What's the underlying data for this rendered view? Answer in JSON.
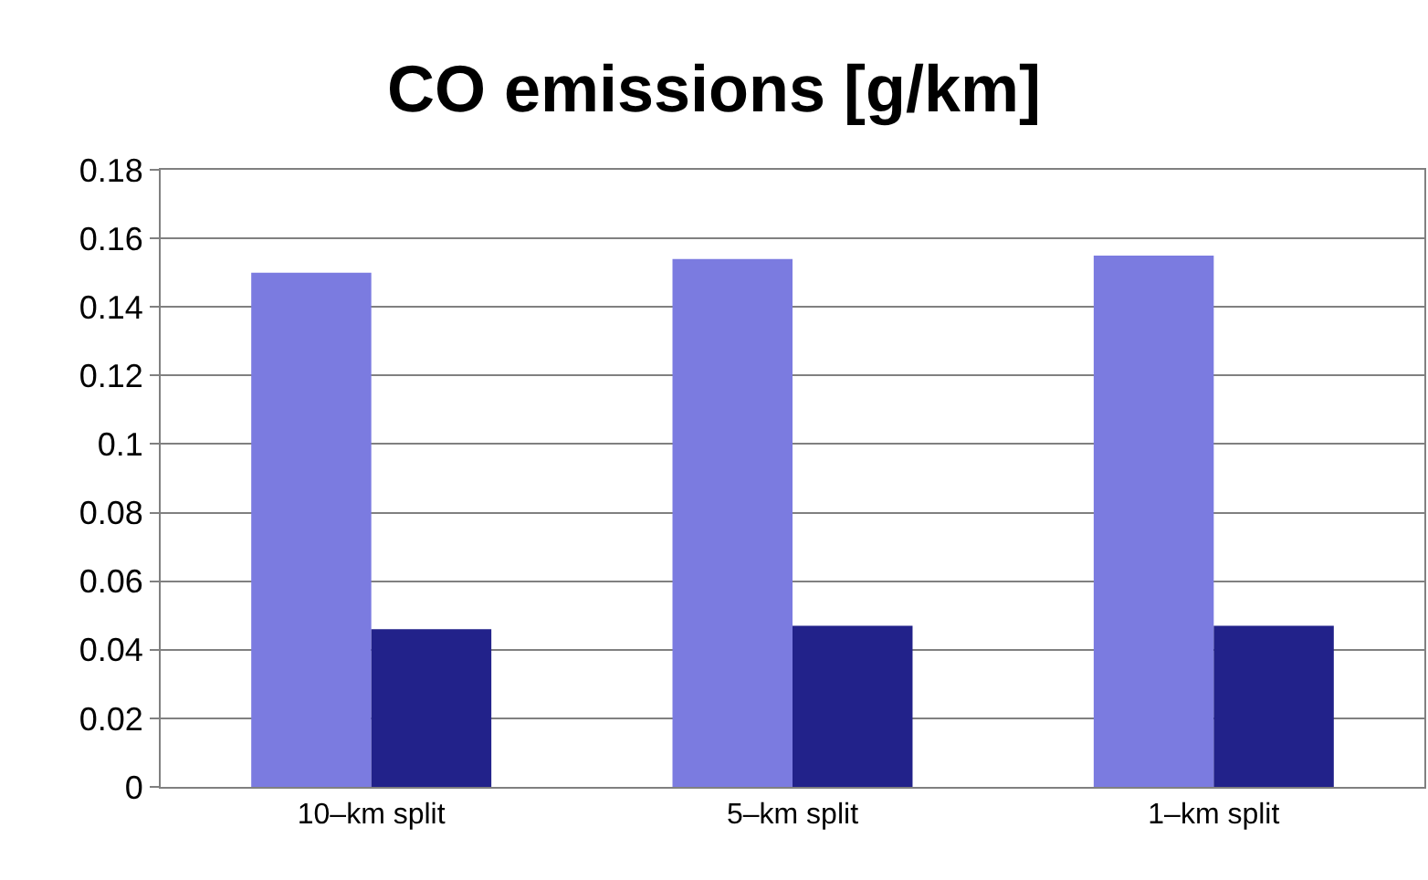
{
  "chart_data": {
    "type": "bar",
    "title": "CO emissions [g/km]",
    "categories": [
      "10–km split",
      "5–km split",
      "1–km split"
    ],
    "series": [
      {
        "color": "#7b7be0",
        "values": [
          0.15,
          0.154,
          0.155
        ]
      },
      {
        "color": "#22228a",
        "values": [
          0.046,
          0.047,
          0.047
        ]
      }
    ],
    "ylim": [
      0,
      0.18
    ],
    "yticks": [
      0,
      0.02,
      0.04,
      0.06,
      0.08,
      0.1,
      0.12,
      0.14,
      0.16,
      0.18
    ],
    "grid": "y"
  }
}
